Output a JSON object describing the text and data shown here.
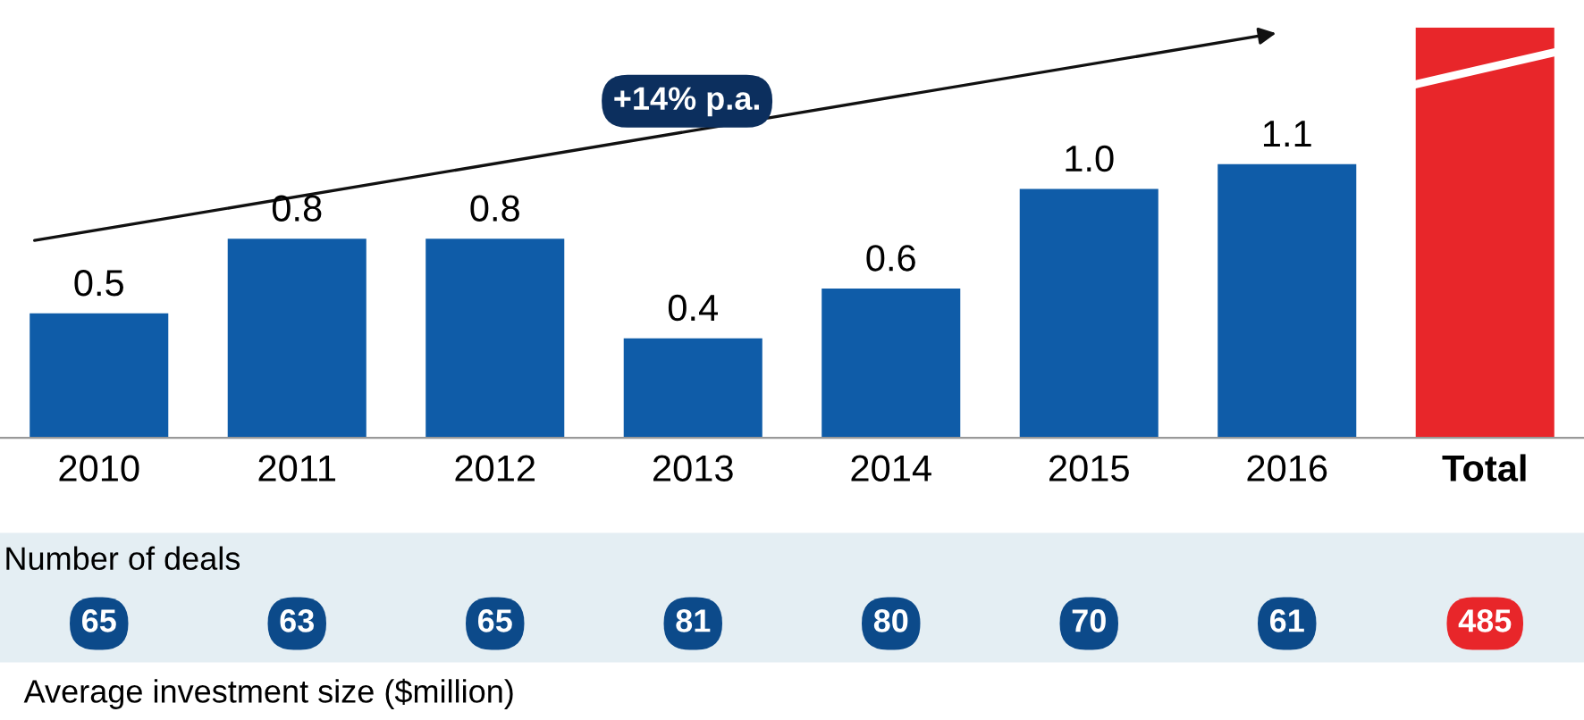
{
  "chart_data": [
    {
      "type": "bar",
      "categories": [
        "2010",
        "2011",
        "2012",
        "2013",
        "2014",
        "2015",
        "2016",
        "Total"
      ],
      "values": [
        0.5,
        0.8,
        0.8,
        0.4,
        0.6,
        1.0,
        1.1,
        1.65
      ],
      "colors": [
        "#0f5ca8",
        "#0f5ca8",
        "#0f5ca8",
        "#0f5ca8",
        "#0f5ca8",
        "#0f5ca8",
        "#0f5ca8",
        "#e8262a"
      ],
      "value_labels": [
        "0.5",
        "0.8",
        "0.8",
        "0.4",
        "0.6",
        "1.0",
        "1.1",
        null
      ],
      "ylim": [
        0,
        1.65
      ],
      "annotations": [
        "+14% p.a."
      ]
    },
    {
      "type": "other",
      "title": "Number of deals",
      "categories": [
        null,
        null,
        null,
        null,
        null,
        null,
        null,
        null
      ],
      "values": [
        65,
        63,
        65,
        81,
        80,
        70,
        61,
        485
      ],
      "colors": [
        "#0c4a8a",
        "#0c4a8a",
        "#0c4a8a",
        "#0c4a8a",
        "#0c4a8a",
        "#0c4a8a",
        "#0c4a8a",
        "#e8262a"
      ],
      "data_labels": true,
      "annotations": [
        "Average investment size ($million)"
      ]
    }
  ]
}
